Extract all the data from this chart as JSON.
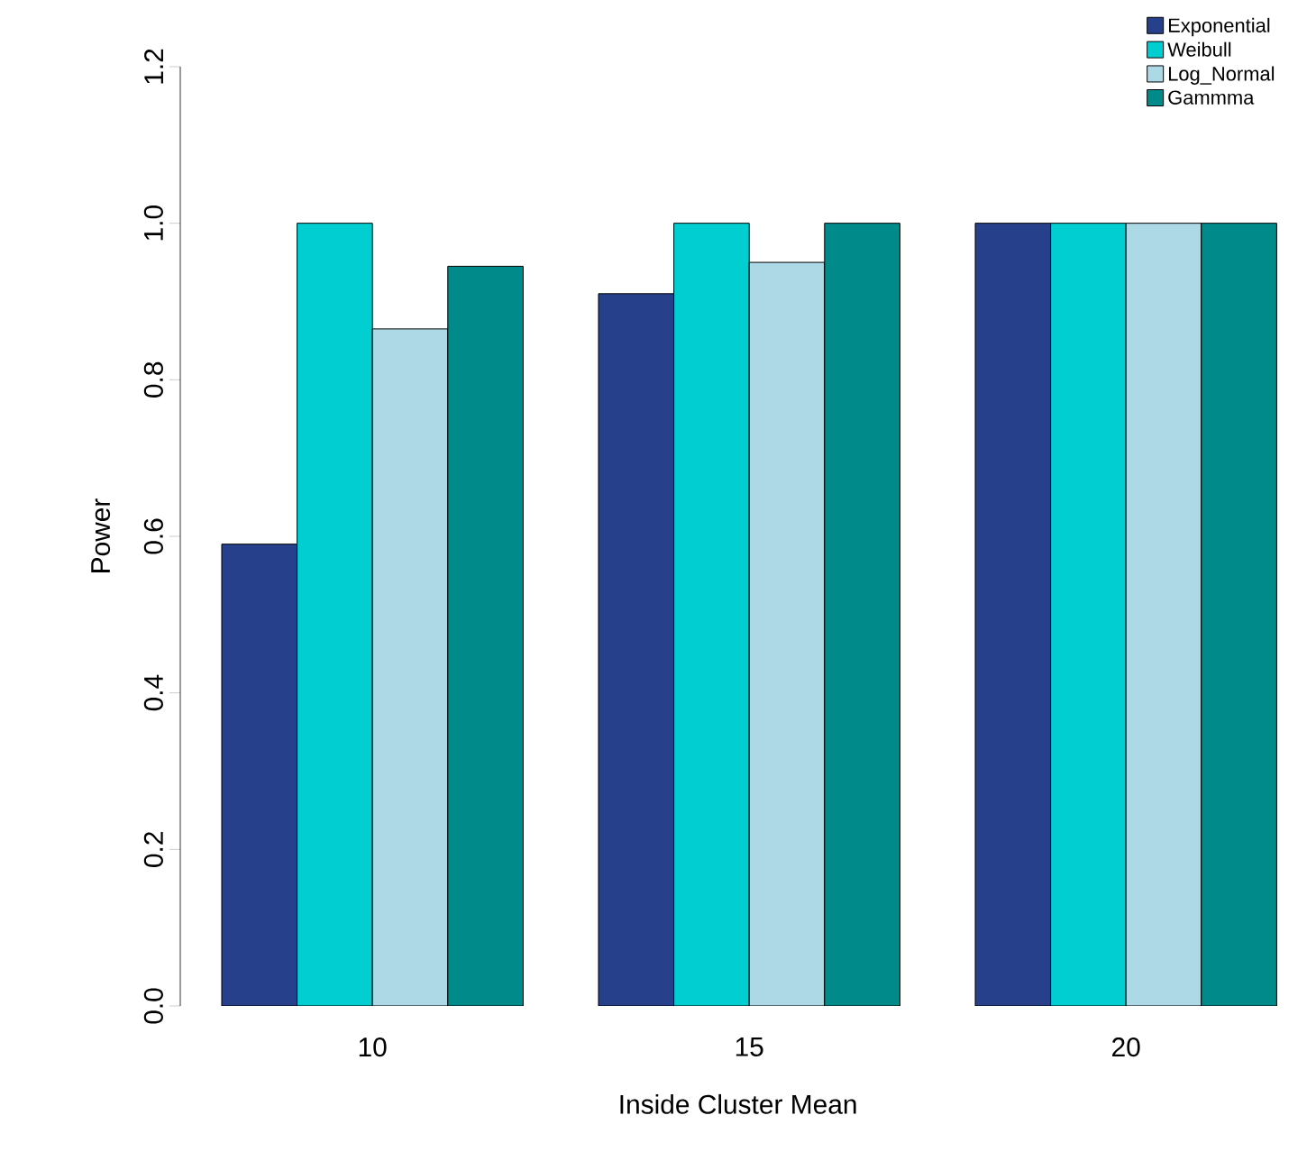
{
  "chart_data": {
    "type": "bar",
    "xlabel": "Inside Cluster Mean",
    "ylabel": "Power",
    "categories": [
      "10",
      "15",
      "20"
    ],
    "series": [
      {
        "name": "Exponential",
        "color": "#27408b",
        "values": [
          0.59,
          0.91,
          1.0
        ]
      },
      {
        "name": "Weibull",
        "color": "#00ced1",
        "values": [
          1.0,
          1.0,
          1.0
        ]
      },
      {
        "name": "Log_Normal",
        "color": "#add8e6",
        "values": [
          0.865,
          0.95,
          1.0
        ]
      },
      {
        "name": "Gammma",
        "color": "#008b8b",
        "values": [
          0.945,
          1.0,
          1.0
        ]
      }
    ],
    "ylim": [
      0,
      1.2
    ],
    "yticks": [
      {
        "value": 0,
        "label": "0.0"
      },
      {
        "value": 0.2,
        "label": "0.2"
      },
      {
        "value": 0.4,
        "label": "0.4"
      },
      {
        "value": 0.6,
        "label": "0.6"
      },
      {
        "value": 0.8,
        "label": "0.8"
      },
      {
        "value": 1.0,
        "label": "1.0"
      },
      {
        "value": 1.2,
        "label": "1.2"
      }
    ],
    "legend": "top right",
    "grid": false
  }
}
